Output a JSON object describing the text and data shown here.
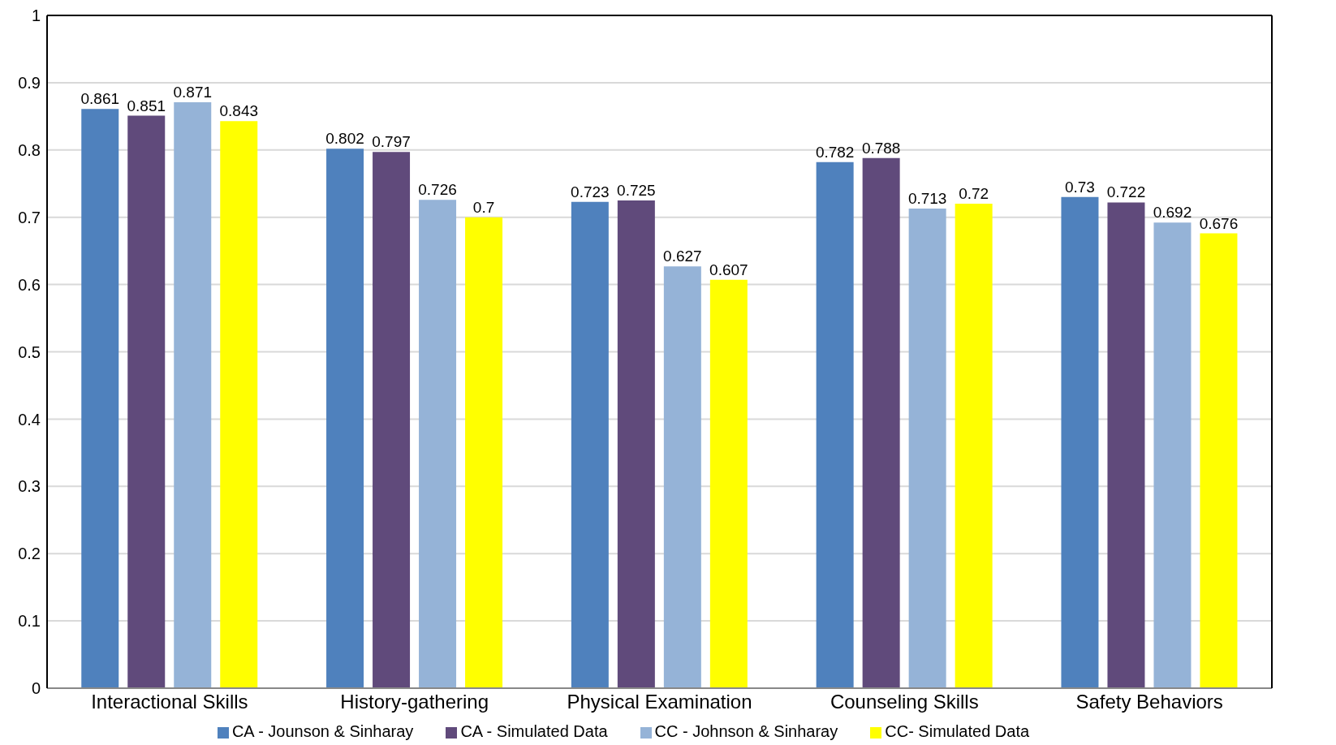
{
  "chart_data": {
    "type": "bar",
    "categories": [
      "Interactional Skills",
      "History-gathering",
      "Physical Examination",
      "Counseling Skills",
      "Safety Behaviors"
    ],
    "series": [
      {
        "name": "CA - Jounson & Sinharay",
        "color": "#4f81bd",
        "values": [
          0.861,
          0.802,
          0.723,
          0.782,
          0.73
        ]
      },
      {
        "name": "CA - Simulated Data",
        "color": "#604a7b",
        "values": [
          0.851,
          0.797,
          0.725,
          0.788,
          0.722
        ]
      },
      {
        "name": "CC - Johnson & Sinharay",
        "color": "#95b3d7",
        "values": [
          0.871,
          0.726,
          0.627,
          0.713,
          0.692
        ]
      },
      {
        "name": "CC- Simulated Data",
        "color": "#ffff00",
        "values": [
          0.843,
          0.7,
          0.607,
          0.72,
          0.676
        ]
      }
    ],
    "ylim": [
      0,
      1
    ],
    "yticks": [
      0,
      0.1,
      0.2,
      0.3,
      0.4,
      0.5,
      0.6,
      0.7,
      0.8,
      0.9,
      1
    ],
    "grid": "y",
    "legend": "bottom",
    "data_labels": true
  }
}
